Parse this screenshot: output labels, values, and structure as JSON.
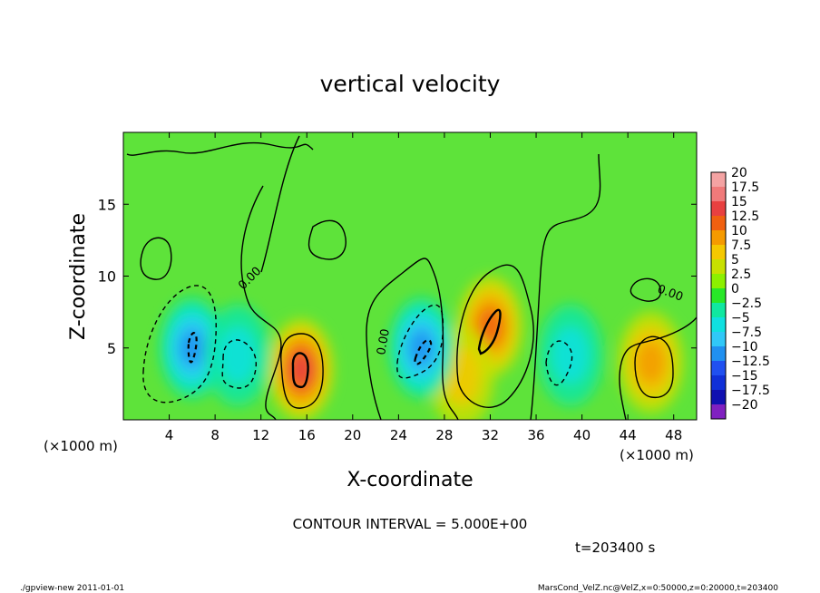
{
  "chart_data": {
    "type": "heatmap",
    "title": "vertical velocity",
    "xlabel": "X-coordinate",
    "ylabel": "Z-coordinate",
    "x_unit_left": "(×1000 m)",
    "x_unit_right": "(×1000 m)",
    "xlim": [
      0,
      50
    ],
    "ylim": [
      0,
      20
    ],
    "xticks": [
      4,
      8,
      12,
      16,
      20,
      24,
      28,
      32,
      36,
      40,
      44,
      48
    ],
    "yticks": [
      5,
      10,
      15
    ],
    "contour_interval_text": "CONTOUR INTERVAL = 5.000E+00",
    "contour_label": "0.00",
    "time_text": "t=203400 s",
    "colorbar": {
      "labels": [
        "20",
        "17.5",
        "15",
        "12.5",
        "10",
        "7.5",
        "5",
        "2.5",
        "0",
        "−2.5",
        "−5",
        "−7.5",
        "−10",
        "−12.5",
        "−15",
        "−17.5",
        "−20"
      ],
      "colors": [
        "#f4a3a3",
        "#f07a7a",
        "#e84040",
        "#f06010",
        "#f59a00",
        "#f5c800",
        "#c8e000",
        "#8cf000",
        "#28e828",
        "#10e8a0",
        "#10e0e0",
        "#30c8f8",
        "#2090f0",
        "#2050f0",
        "#1030d8",
        "#1010b0",
        "#8020c0"
      ]
    },
    "background_value_range": [
      -2.5,
      2.5
    ],
    "features": [
      {
        "kind": "updraft",
        "x": 15.5,
        "z": 3.5,
        "peak": 12.5
      },
      {
        "kind": "updraft",
        "x": 32,
        "z": 6.5,
        "peak": 10
      },
      {
        "kind": "updraft",
        "x": 46,
        "z": 4,
        "peak": 7.5
      },
      {
        "kind": "updraft",
        "x": 29.5,
        "z": 3,
        "peak": 5
      },
      {
        "kind": "downdraft",
        "x": 6,
        "z": 5,
        "peak": -10
      },
      {
        "kind": "downdraft",
        "x": 26,
        "z": 5,
        "peak": -10
      },
      {
        "kind": "downdraft",
        "x": 10,
        "z": 4.5,
        "peak": -5
      },
      {
        "kind": "downdraft",
        "x": 39,
        "z": 4.5,
        "peak": -5
      }
    ]
  },
  "footer": {
    "left": "./gpview-new   2011-01-01",
    "right": "MarsCond_VelZ.nc@VelZ,x=0:50000,z=0:20000,t=203400"
  }
}
